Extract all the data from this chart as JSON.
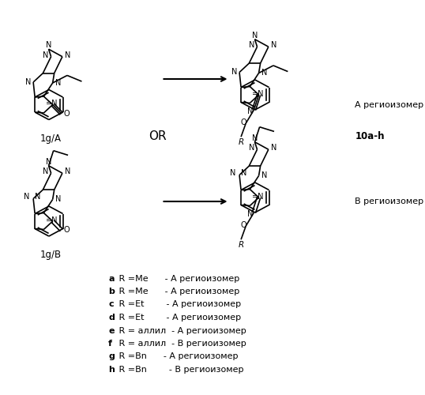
{
  "background_color": "#ffffff",
  "figure_width": 5.38,
  "figure_height": 5.0,
  "dpi": 100,
  "legend_lines": [
    [
      "a",
      " R =Me      - А региоизомер"
    ],
    [
      "b",
      " R =Me      - А региоизомер"
    ],
    [
      "c",
      " R =Et        - А региоизомер"
    ],
    [
      "d",
      " R =Et        - А региоизомер"
    ],
    [
      "e",
      " R = аллил  - А региоизомер"
    ],
    [
      "f",
      " R = аллил  - В региоизомер"
    ],
    [
      "g",
      " R =Bn      - А региоизомер"
    ],
    [
      "h",
      " R =Bn        - В региоизомер"
    ]
  ],
  "label_1gA": "1g/A",
  "label_1gB": "1g/B",
  "label_10ah": "10a-h",
  "label_OR": "OR",
  "label_A_regio": "А региоизомер",
  "label_B_regio": "В региоизомер"
}
